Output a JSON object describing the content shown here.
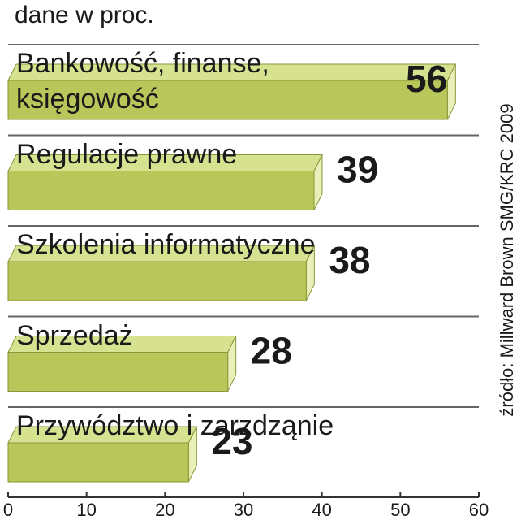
{
  "chart_data": {
    "type": "bar",
    "orientation": "horizontal",
    "subtitle": "dane w proc.",
    "categories": [
      "Bankowość, finanse, księgowość",
      "Regulacje prawne",
      "Szkolenia informatyczne",
      "Sprzedaż",
      "Przywództwo i zarzdząnie"
    ],
    "values": [
      56,
      39,
      38,
      28,
      23
    ],
    "color": "#b8c65a",
    "xlim": [
      0,
      60
    ],
    "xticks": [
      0,
      10,
      20,
      30,
      40,
      50,
      60
    ],
    "source": "źródło: Millward Brown SMG/KRC 2009"
  }
}
